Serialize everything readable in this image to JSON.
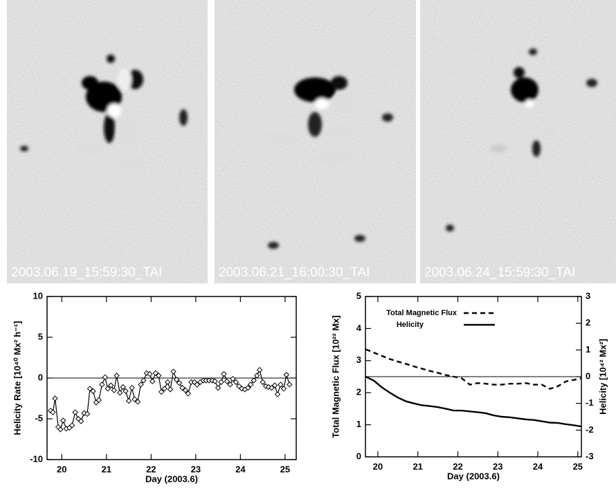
{
  "panels": [
    {
      "label": "2003.06.19_15:59:30_TAI"
    },
    {
      "label": "2003.06.21_16:00:30_TAI"
    },
    {
      "label": "2003.06.24_15:59:30_TAI"
    }
  ],
  "chart_data": [
    {
      "type": "line",
      "xlabel": "Day (2003.6)",
      "ylabel": "Helicity Rate [10⁴⁰ Mx² h⁻¹]",
      "x": [
        19.75,
        19.8,
        19.85,
        19.92,
        19.97,
        20.03,
        20.1,
        20.17,
        20.23,
        20.3,
        20.37,
        20.43,
        20.5,
        20.57,
        20.63,
        20.7,
        20.77,
        20.83,
        20.9,
        20.97,
        21.03,
        21.1,
        21.17,
        21.23,
        21.3,
        21.37,
        21.43,
        21.5,
        21.57,
        21.63,
        21.7,
        21.77,
        21.83,
        21.9,
        21.97,
        22.03,
        22.1,
        22.17,
        22.23,
        22.3,
        22.37,
        22.43,
        22.5,
        22.57,
        22.63,
        22.7,
        22.77,
        22.83,
        22.9,
        22.97,
        23.03,
        23.1,
        23.17,
        23.23,
        23.3,
        23.37,
        23.43,
        23.5,
        23.57,
        23.63,
        23.7,
        23.77,
        23.83,
        23.9,
        23.97,
        24.03,
        24.1,
        24.17,
        24.23,
        24.3,
        24.37,
        24.43,
        24.5,
        24.57,
        24.63,
        24.7,
        24.77,
        24.83,
        24.9,
        24.97,
        25.03,
        25.1
      ],
      "series": [
        {
          "color": "#000000",
          "marker": "diamond",
          "values": [
            -4,
            -4.2,
            -2.5,
            -6,
            -6.3,
            -5.2,
            -6.2,
            -6.1,
            -5.8,
            -4.2,
            -5,
            -5.3,
            -4.3,
            -4.4,
            -1.3,
            -1.6,
            -3,
            -2.7,
            -0.8,
            0.1,
            -1.3,
            -0.9,
            -1.5,
            0.3,
            -1.8,
            -1.1,
            -1.6,
            -2.8,
            -1.2,
            -2.6,
            -2.9,
            -0.8,
            -0.3,
            0.6,
            0.5,
            -0.4,
            0.6,
            0.3,
            -1.7,
            -1.3,
            -0.5,
            -1.4,
            0.8,
            -0.2,
            -0.6,
            -1.2,
            -1.5,
            -1.9,
            -0.5,
            -0.5,
            -0.8,
            -0.5,
            -0.3,
            -0.3,
            -0.3,
            -0.3,
            -0.4,
            -1.2,
            -0.5,
            0.5,
            -0.4,
            -0.8,
            -0.1,
            -0.5,
            -1,
            -1.3,
            -1.4,
            -1.2,
            -0.8,
            -0.3,
            0.3,
            1,
            -0.5,
            -1,
            -1.1,
            -1.2,
            -0.9,
            -2,
            -0.8,
            -1.3,
            0.4,
            -0.8
          ]
        }
      ],
      "xlim": [
        19.67,
        25.25
      ],
      "ylim": [
        -10,
        10
      ],
      "xticks": [
        20,
        21,
        22,
        23,
        24,
        25
      ],
      "yticks": [
        -10,
        -5,
        0,
        5,
        10
      ],
      "reference_line": 0
    },
    {
      "type": "line",
      "xlabel": "Day (2003.6)",
      "ylabel": "Total Magnetic Flux [10²² Mx]",
      "y2label": "Helicity [10⁴² Mx²]",
      "x": [
        19.7,
        19.9,
        20.1,
        20.3,
        20.5,
        20.7,
        20.9,
        21.1,
        21.3,
        21.5,
        21.7,
        21.9,
        22.1,
        22.3,
        22.5,
        22.7,
        22.9,
        23.1,
        23.3,
        23.5,
        23.7,
        23.9,
        24.1,
        24.3,
        24.5,
        24.7,
        24.9,
        25.08
      ],
      "series": [
        {
          "name": "Total Magnetic Flux",
          "color": "#000000",
          "linestyle": "dashed",
          "values": [
            3.35,
            3.25,
            3.15,
            3.05,
            2.97,
            2.9,
            2.82,
            2.75,
            2.68,
            2.62,
            2.55,
            2.5,
            2.45,
            2.25,
            2.3,
            2.28,
            2.25,
            2.25,
            2.28,
            2.28,
            2.3,
            2.25,
            2.25,
            2.12,
            2.2,
            2.35,
            2.4,
            2.45
          ]
        },
        {
          "name": "Helicity",
          "color": "#000000",
          "linestyle": "solid",
          "axis": "y2",
          "values": [
            0,
            -0.15,
            -0.4,
            -0.6,
            -0.78,
            -0.92,
            -1,
            -1.07,
            -1.1,
            -1.14,
            -1.2,
            -1.27,
            -1.27,
            -1.3,
            -1.33,
            -1.37,
            -1.45,
            -1.5,
            -1.52,
            -1.56,
            -1.6,
            -1.62,
            -1.67,
            -1.72,
            -1.73,
            -1.78,
            -1.82,
            -1.86
          ]
        }
      ],
      "xlim": [
        19.69,
        25.09
      ],
      "ylim": [
        0,
        5
      ],
      "y2lim": [
        -3,
        3
      ],
      "xticks": [
        20,
        21,
        22,
        23,
        24,
        25
      ],
      "yticks": [
        0,
        1,
        2,
        3,
        4,
        5
      ],
      "y2ticks": [
        -3,
        -2,
        -1,
        0,
        1,
        2,
        3
      ],
      "reference_line": {
        "value": 0,
        "axis": "y2"
      },
      "legend": "upper left"
    }
  ]
}
